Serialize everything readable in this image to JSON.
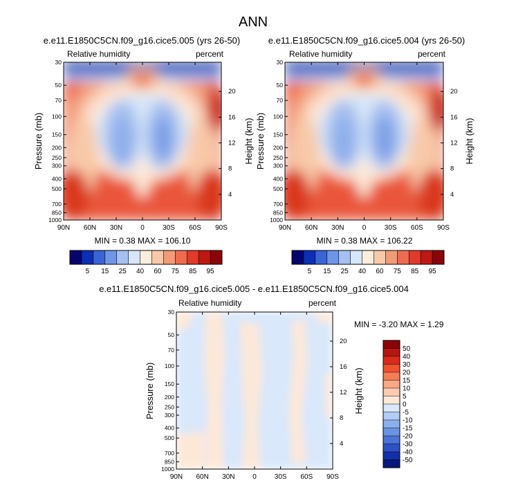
{
  "figure": {
    "title": "ANN"
  },
  "panels": [
    {
      "id": "p1",
      "title": "e.e11.E1850C5CN.f09_g16.cice5.005 (yrs 26-50)",
      "left_label": "Relative humidity",
      "right_label": "percent",
      "ylabel": "Pressure (mb)",
      "ylabel_right": "Height (km)",
      "stats": "MIN =  0.38  MAX = 106.10"
    },
    {
      "id": "p2",
      "title": "e.e11.E1850C5CN.f09_g16.cice5.004 (yrs 26-50)",
      "left_label": "Relative humidity",
      "right_label": "percent",
      "ylabel": "Pressure (mb)",
      "ylabel_right": "Height (km)",
      "stats": "MIN =  0.38  MAX = 106.22"
    },
    {
      "id": "p3",
      "title": "e.e11.E1850C5CN.f09_g16.cice5.005 - e.e11.E1850C5CN.f09_g16.cice5.004",
      "left_label": "Relative humidity",
      "right_label": "percent",
      "ylabel": "Pressure (mb)",
      "ylabel_right": "Height (km)",
      "stats": "MIN = -3.20  MAX =  1.29"
    }
  ],
  "axes": {
    "x_ticks": [
      "90N",
      "60N",
      "30N",
      "0",
      "30S",
      "60S",
      "90S"
    ],
    "pressure_ticks": [
      {
        "label": "30",
        "p": 30
      },
      {
        "label": "50",
        "p": 50
      },
      {
        "label": "70",
        "p": 70
      },
      {
        "label": "100",
        "p": 100
      },
      {
        "label": "150",
        "p": 150
      },
      {
        "label": "200",
        "p": 200
      },
      {
        "label": "250",
        "p": 250
      },
      {
        "label": "300",
        "p": 300
      },
      {
        "label": "400",
        "p": 400
      },
      {
        "label": "500",
        "p": 500
      },
      {
        "label": "700",
        "p": 700
      },
      {
        "label": "850",
        "p": 850
      },
      {
        "label": "1000",
        "p": 1000
      }
    ],
    "height_ticks": [
      {
        "label": "20",
        "km": 20
      },
      {
        "label": "16",
        "km": 16
      },
      {
        "label": "12",
        "km": 12
      },
      {
        "label": "8",
        "km": 8
      },
      {
        "label": "4",
        "km": 4
      }
    ]
  },
  "colorbar_abs": {
    "labels": [
      "5",
      "15",
      "25",
      "40",
      "60",
      "75",
      "85",
      "95"
    ],
    "colors": [
      "#08046e",
      "#0c2fb6",
      "#3a65d6",
      "#6f95e6",
      "#a6c0ef",
      "#d7e6f8",
      "#fbeedd",
      "#f8c9a9",
      "#f39b78",
      "#ef6b4f",
      "#e03a2a",
      "#bd1813",
      "#8a0509"
    ]
  },
  "colorbar_diff": {
    "labels": [
      "50",
      "40",
      "30",
      "20",
      "15",
      "10",
      "5",
      "0",
      "-5",
      "-10",
      "-15",
      "-20",
      "-30",
      "-40",
      "-50"
    ],
    "colors": [
      "#8a0509",
      "#b81510",
      "#db2a1c",
      "#f0532d",
      "#f47e55",
      "#f8a884",
      "#fbcdb0",
      "#fde8d8",
      "#d9e8fb",
      "#b2cdf4",
      "#8cb0ec",
      "#6a93e3",
      "#4a74d8",
      "#2c52c5",
      "#1230a7",
      "#06187a"
    ]
  },
  "chart_data": [
    {
      "type": "heatmap",
      "title": "e.e11.E1850C5CN.f09_g16.cice5.005 (yrs 26-50)",
      "variable": "Relative humidity",
      "units": "percent",
      "x": [
        "90N",
        "60N",
        "30N",
        "0",
        "30S",
        "60S",
        "90S"
      ],
      "y_axis": "Pressure (mb)",
      "y_range": [
        1000,
        30
      ],
      "y_scale": "log",
      "min": 0.38,
      "max": 106.1,
      "levels": [
        5,
        10,
        15,
        20,
        25,
        30,
        40,
        50,
        60,
        70,
        75,
        80,
        85,
        90,
        95
      ]
    },
    {
      "type": "heatmap",
      "title": "e.e11.E1850C5CN.f09_g16.cice5.004 (yrs 26-50)",
      "variable": "Relative humidity",
      "units": "percent",
      "x": [
        "90N",
        "60N",
        "30N",
        "0",
        "30S",
        "60S",
        "90S"
      ],
      "y_axis": "Pressure (mb)",
      "y_range": [
        1000,
        30
      ],
      "y_scale": "log",
      "min": 0.38,
      "max": 106.22,
      "levels": [
        5,
        10,
        15,
        20,
        25,
        30,
        40,
        50,
        60,
        70,
        75,
        80,
        85,
        90,
        95
      ]
    },
    {
      "type": "heatmap",
      "title": "e.e11.E1850C5CN.f09_g16.cice5.005 - e.e11.E1850C5CN.f09_g16.cice5.004",
      "variable": "Relative humidity",
      "units": "percent",
      "x": [
        "90N",
        "60N",
        "30N",
        "0",
        "30S",
        "60S",
        "90S"
      ],
      "y_axis": "Pressure (mb)",
      "y_range": [
        1000,
        30
      ],
      "y_scale": "log",
      "min": -3.2,
      "max": 1.29,
      "levels": [
        -50,
        -40,
        -30,
        -20,
        -15,
        -10,
        -5,
        0,
        5,
        10,
        15,
        20,
        30,
        40,
        50
      ]
    }
  ]
}
